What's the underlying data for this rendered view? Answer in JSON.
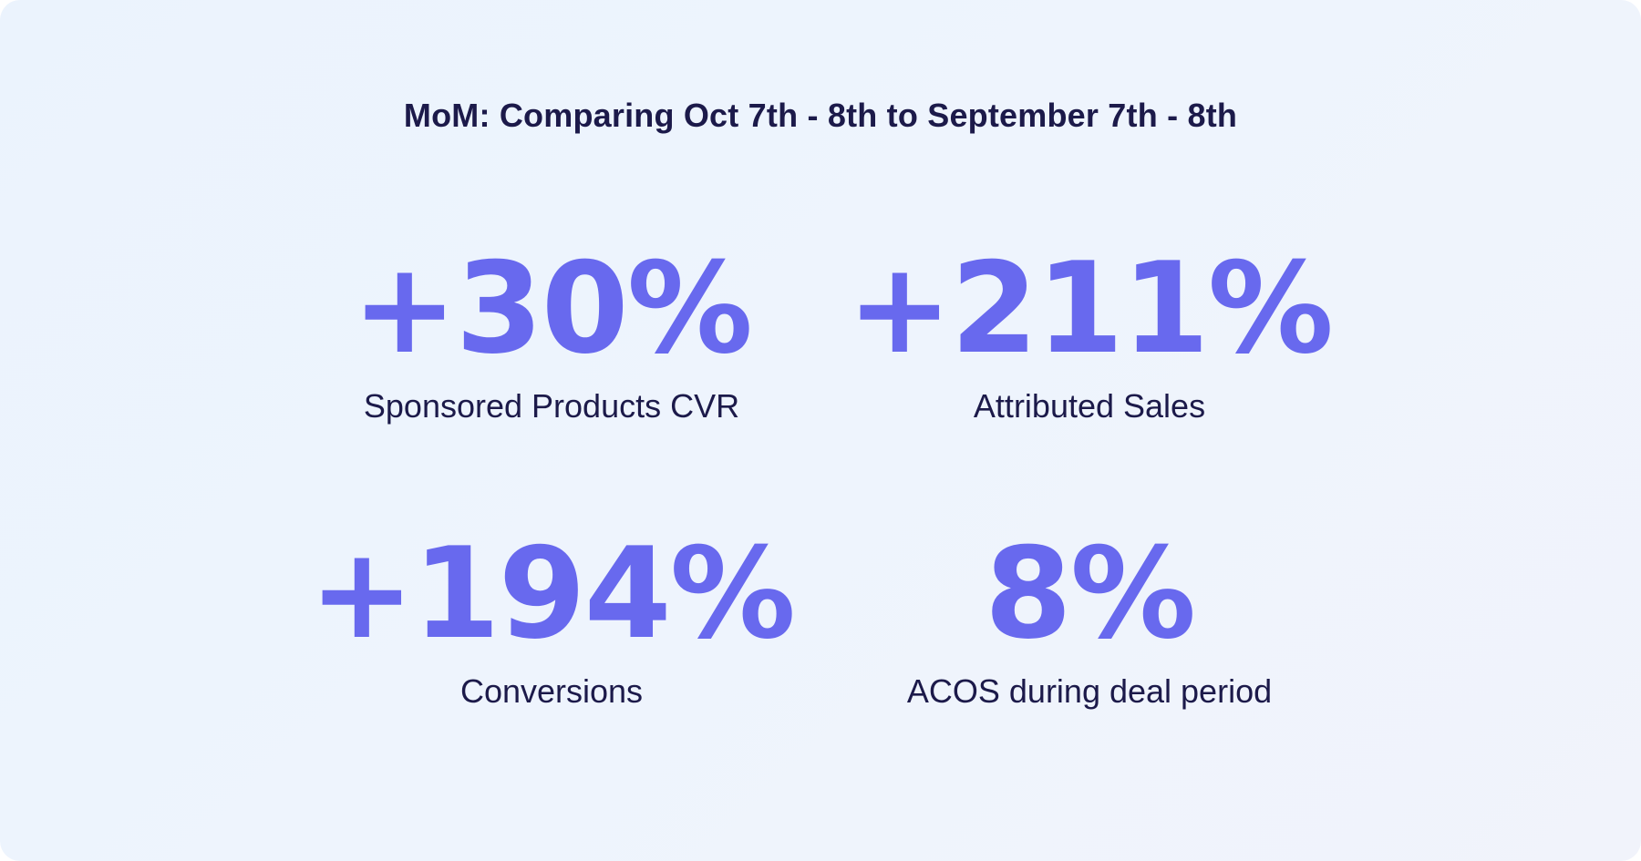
{
  "title": "MoM: Comparing Oct 7th - 8th to September 7th - 8th",
  "stats": [
    {
      "value": "+30%",
      "label": "Sponsored Products CVR"
    },
    {
      "value": "+211%",
      "label": "Attributed Sales"
    },
    {
      "value": "+194%",
      "label": "Conversions"
    },
    {
      "value": "8%",
      "label": "ACOS during deal period"
    }
  ],
  "colors": {
    "background": "#eef4fd",
    "accent": "#6869ee",
    "text": "#1c1a4a"
  }
}
